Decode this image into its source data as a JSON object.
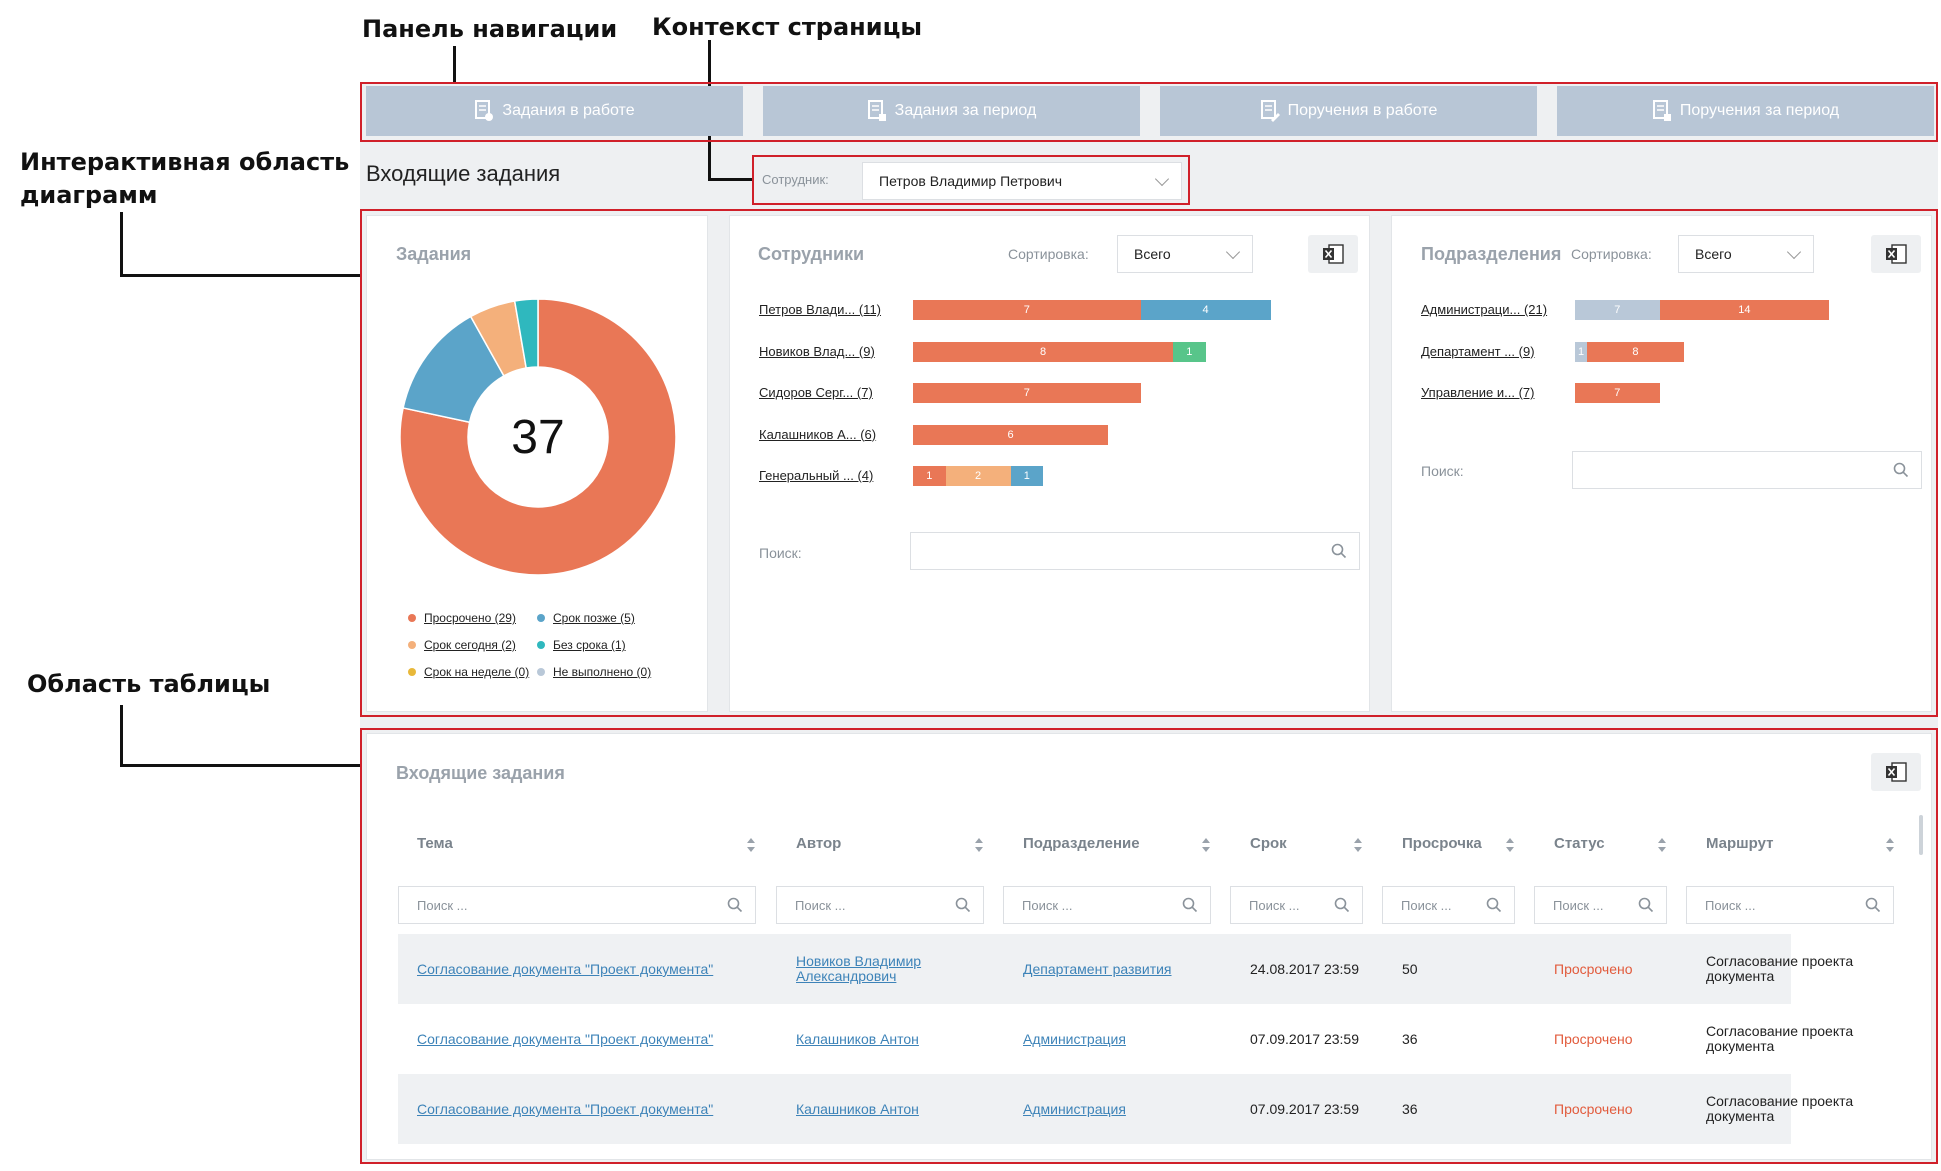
{
  "annotations": {
    "nav_panel": "Панель навигации",
    "context": "Контекст страницы",
    "charts_area_l1": "Интерактивная область",
    "charts_area_l2": "диаграмм",
    "table_area": "Область таблицы"
  },
  "nav": {
    "items": [
      {
        "label": "Задания в работе",
        "icon": "document-gear-icon"
      },
      {
        "label": "Задания за период",
        "icon": "document-icon"
      },
      {
        "label": "Поручения в работе",
        "icon": "document-edit-icon"
      },
      {
        "label": "Поручения за период",
        "icon": "document-icon"
      }
    ]
  },
  "page": {
    "title": "Входящие задания",
    "employee_label": "Сотрудник:",
    "employee_value": "Петров Владимир Петрович"
  },
  "tasks_card": {
    "title": "Задания",
    "total": "37",
    "legend": [
      {
        "label": "Просрочено (29)",
        "color": "#e97756"
      },
      {
        "label": "Срок позже (5)",
        "color": "#5ba4c9"
      },
      {
        "label": "Срок сегодня (2)",
        "color": "#f4b07b"
      },
      {
        "label": "Без срока (1)",
        "color": "#2fb8be"
      },
      {
        "label": "Срок на неделе (0)",
        "color": "#e8b83a"
      },
      {
        "label": "Не выполнено (0)",
        "color": "#b9c8d8"
      }
    ]
  },
  "chart_data": [
    {
      "type": "pie",
      "title": "Задания",
      "center_label": "37",
      "slices": [
        {
          "name": "Просрочено",
          "value": 29,
          "color": "#e97756"
        },
        {
          "name": "Срок позже",
          "value": 5,
          "color": "#5ba4c9"
        },
        {
          "name": "Срок сегодня",
          "value": 2,
          "color": "#f4b07b"
        },
        {
          "name": "Без срока",
          "value": 1,
          "color": "#2fb8be"
        },
        {
          "name": "Срок на неделе",
          "value": 0,
          "color": "#e8b83a"
        },
        {
          "name": "Не выполнено",
          "value": 0,
          "color": "#b9c8d8"
        }
      ]
    },
    {
      "type": "bar",
      "title": "Сотрудники",
      "categories": [
        "Петров Влади... (11)",
        "Новиков Влад... (9)",
        "Сидоров Серг... (7)",
        "Калашников А... (6)",
        "Генеральный ... (4)"
      ],
      "series": [
        {
          "name": "Просрочено",
          "color": "#e97756",
          "values": [
            7,
            8,
            7,
            6,
            1
          ]
        },
        {
          "name": "Срок сегодня",
          "color": "#f4b07b",
          "values": [
            0,
            0,
            0,
            0,
            2
          ]
        },
        {
          "name": "Срок позже",
          "color": "#5ba4c9",
          "values": [
            4,
            0,
            0,
            0,
            1
          ]
        },
        {
          "name": "Без срока",
          "color": "#58c58a",
          "values": [
            0,
            1,
            0,
            0,
            0
          ]
        }
      ]
    },
    {
      "type": "bar",
      "title": "Подразделения",
      "categories": [
        "Администраци... (21)",
        "Департамент ... (9)",
        "Управление и... (7)"
      ],
      "series": [
        {
          "name": "Не выполнено",
          "color": "#b9c8d8",
          "values": [
            7,
            1,
            0
          ]
        },
        {
          "name": "Просрочено",
          "color": "#e97756",
          "values": [
            14,
            8,
            7
          ]
        }
      ]
    }
  ],
  "employees_card": {
    "title": "Сотрудники",
    "sort_label": "Сортировка:",
    "sort_value": "Всего",
    "search_label": "Поиск:"
  },
  "departments_card": {
    "title": "Подразделения",
    "sort_label": "Сортировка:",
    "sort_value": "Всего",
    "search_label": "Поиск:"
  },
  "table": {
    "title": "Входящие задания",
    "columns": [
      "Тема",
      "Автор",
      "Подразделение",
      "Срок",
      "Просрочка",
      "Статус",
      "Маршрут"
    ],
    "search_placeholder": "Поиск ...",
    "rows": [
      {
        "topic": "Согласование документа \"Проект документа\"",
        "author": "Новиков Владимир Александрович",
        "dept": "Департамент развития",
        "due": "24.08.2017 23:59",
        "overdue": "50",
        "status": "Просрочено",
        "route": "Согласование проекта документа"
      },
      {
        "topic": "Согласование документа \"Проект документа\"",
        "author": "Калашников Антон",
        "dept": "Администрация",
        "due": "07.09.2017 23:59",
        "overdue": "36",
        "status": "Просрочено",
        "route": "Согласование проекта документа"
      },
      {
        "topic": "Согласование документа \"Проект документа\"",
        "author": "Калашников Антон",
        "dept": "Администрация",
        "due": "07.09.2017 23:59",
        "overdue": "36",
        "status": "Просрочено",
        "route": "Согласование проекта документа"
      }
    ]
  }
}
